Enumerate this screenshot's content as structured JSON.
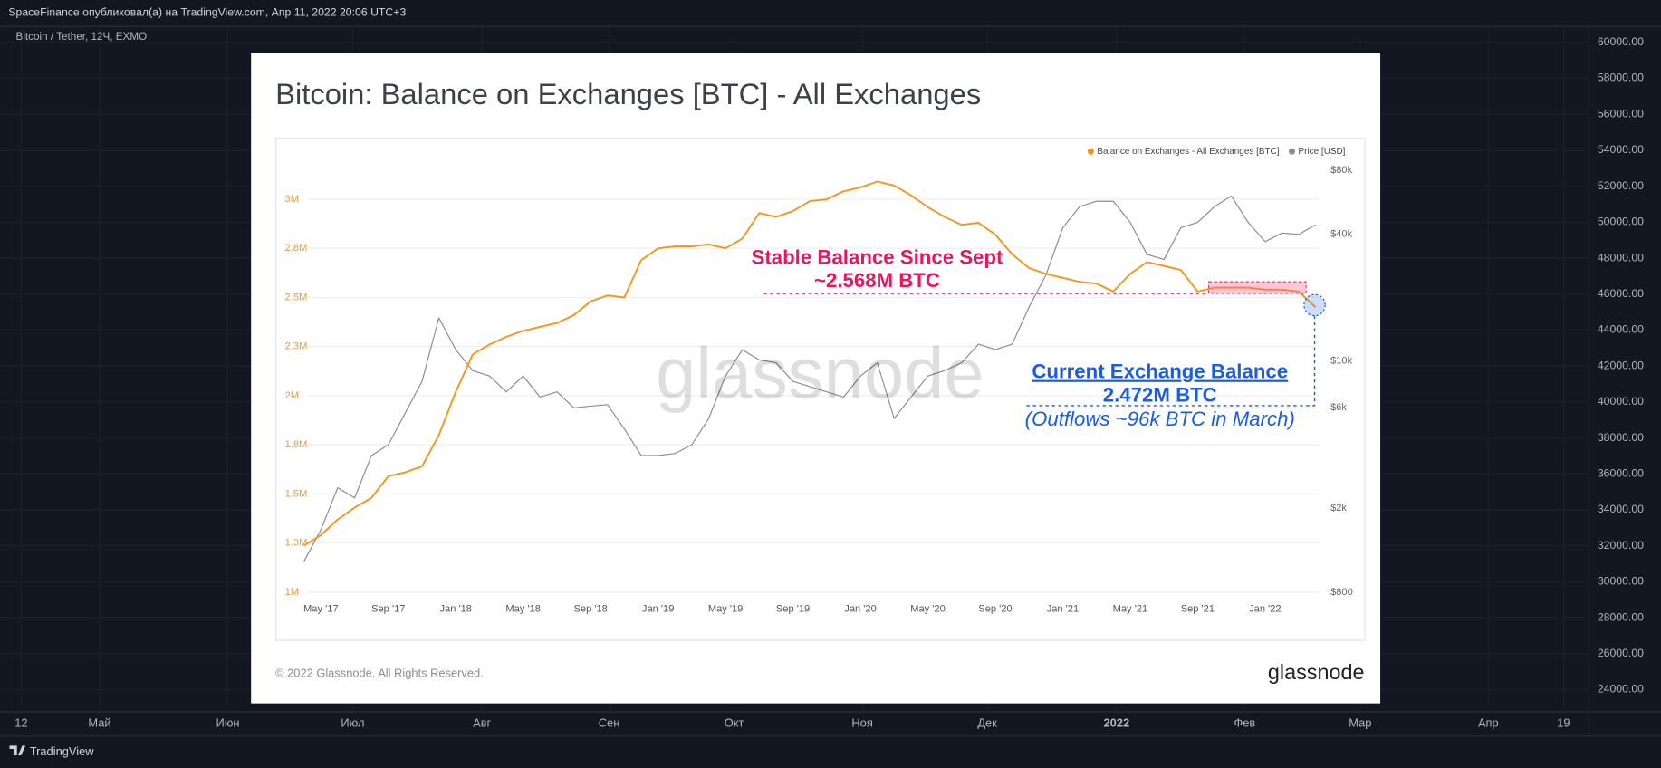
{
  "header": "SpaceFinance опубликовал(а) на TradingView.com, Апр 11, 2022 20:06 UTC+3",
  "symbol": "Bitcoin / Tether, 12Ч, EXMO",
  "price_axis": {
    "ylim": [
      24000,
      60000
    ],
    "ticks": [
      {
        "value": 60000,
        "label": "60000.00"
      },
      {
        "value": 58000,
        "label": "58000.00"
      },
      {
        "value": 56000,
        "label": "56000.00"
      },
      {
        "value": 54000,
        "label": "54000.00"
      },
      {
        "value": 52000,
        "label": "52000.00"
      },
      {
        "value": 50000,
        "label": "50000.00"
      },
      {
        "value": 48000,
        "label": "48000.00"
      },
      {
        "value": 46000,
        "label": "46000.00"
      },
      {
        "value": 44000,
        "label": "44000.00"
      },
      {
        "value": 42000,
        "label": "42000.00"
      },
      {
        "value": 40000,
        "label": "40000.00"
      },
      {
        "value": 38000,
        "label": "38000.00"
      },
      {
        "value": 36000,
        "label": "36000.00"
      },
      {
        "value": 34000,
        "label": "34000.00"
      },
      {
        "value": 32000,
        "label": "32000.00"
      },
      {
        "value": 30000,
        "label": "30000.00"
      },
      {
        "value": 28000,
        "label": "28000.00"
      },
      {
        "value": 26000,
        "label": "26000.00"
      },
      {
        "value": 24000,
        "label": "24000.00"
      }
    ]
  },
  "time_axis": [
    "12",
    "Май",
    "Июн",
    "Июл",
    "Авг",
    "Сен",
    "Окт",
    "Ноя",
    "Дек",
    "2022",
    "Фев",
    "Мар",
    "Апр",
    "19"
  ],
  "footer": "TradingView",
  "chart_data": {
    "type": "line",
    "title": "Bitcoin: Balance on Exchanges [BTC] - All Exchanges",
    "watermark": "glassnode",
    "copyright": "© 2022 Glassnode. All Rights Reserved.",
    "brand": "glassnode",
    "legend": "top-right",
    "grid": true,
    "y2log": true,
    "xlim": [
      "2017-04",
      "2022-04"
    ],
    "x": [
      "2017-04",
      "2017-05",
      "2017-06",
      "2017-07",
      "2017-08",
      "2017-09",
      "2017-10",
      "2017-11",
      "2017-12",
      "2018-01",
      "2018-02",
      "2018-03",
      "2018-04",
      "2018-05",
      "2018-06",
      "2018-07",
      "2018-08",
      "2018-09",
      "2018-10",
      "2018-11",
      "2018-12",
      "2019-01",
      "2019-02",
      "2019-03",
      "2019-04",
      "2019-05",
      "2019-06",
      "2019-07",
      "2019-08",
      "2019-09",
      "2019-10",
      "2019-11",
      "2019-12",
      "2020-01",
      "2020-02",
      "2020-03",
      "2020-04",
      "2020-05",
      "2020-06",
      "2020-07",
      "2020-08",
      "2020-09",
      "2020-10",
      "2020-11",
      "2020-12",
      "2021-01",
      "2021-02",
      "2021-03",
      "2021-04",
      "2021-05",
      "2021-06",
      "2021-07",
      "2021-08",
      "2021-09",
      "2021-10",
      "2021-11",
      "2021-12",
      "2022-01",
      "2022-02",
      "2022-03",
      "2022-04"
    ],
    "xticks": [
      {
        "value": "2017-05",
        "label": "May '17"
      },
      {
        "value": "2017-09",
        "label": "Sep '17"
      },
      {
        "value": "2018-01",
        "label": "Jan '18"
      },
      {
        "value": "2018-05",
        "label": "May '18"
      },
      {
        "value": "2018-09",
        "label": "Sep '18"
      },
      {
        "value": "2019-01",
        "label": "Jan '19"
      },
      {
        "value": "2019-05",
        "label": "May '19"
      },
      {
        "value": "2019-09",
        "label": "Sep '19"
      },
      {
        "value": "2020-01",
        "label": "Jan '20"
      },
      {
        "value": "2020-05",
        "label": "May '20"
      },
      {
        "value": "2020-09",
        "label": "Sep '20"
      },
      {
        "value": "2021-01",
        "label": "Jan '21"
      },
      {
        "value": "2021-05",
        "label": "May '21"
      },
      {
        "value": "2021-09",
        "label": "Sep '21"
      },
      {
        "value": "2022-01",
        "label": "Jan '22"
      }
    ],
    "ylim": [
      1000000,
      3250000
    ],
    "yticks": [
      {
        "value": 1000000,
        "label": "1M"
      },
      {
        "value": 1250000,
        "label": "1.3M"
      },
      {
        "value": 1500000,
        "label": "1.5M"
      },
      {
        "value": 1750000,
        "label": "1.8M"
      },
      {
        "value": 2000000,
        "label": "2M"
      },
      {
        "value": 2250000,
        "label": "2.3M"
      },
      {
        "value": 2500000,
        "label": "2.5M"
      },
      {
        "value": 2750000,
        "label": "2.8M"
      },
      {
        "value": 3000000,
        "label": "3M"
      }
    ],
    "y2lim": [
      800,
      100000
    ],
    "y2ticks": [
      {
        "value": 800,
        "label": "$800"
      },
      {
        "value": 2000,
        "label": "$2k"
      },
      {
        "value": 6000,
        "label": "$6k"
      },
      {
        "value": 10000,
        "label": "$10k"
      },
      {
        "value": 40000,
        "label": "$40k"
      },
      {
        "value": 80000,
        "label": "$80k"
      }
    ],
    "series": [
      {
        "name": "Balance on Exchanges - All Exchanges [BTC]",
        "color": "#f7931a",
        "values": [
          1237000,
          1290000,
          1370000,
          1430000,
          1480000,
          1590000,
          1610000,
          1640000,
          1800000,
          2020000,
          2210000,
          2260000,
          2300000,
          2330000,
          2350000,
          2370000,
          2410000,
          2480000,
          2510000,
          2500000,
          2690000,
          2750000,
          2760000,
          2760000,
          2770000,
          2750000,
          2800000,
          2930000,
          2910000,
          2940000,
          2990000,
          3000000,
          3040000,
          3060000,
          3090000,
          3070000,
          3020000,
          2960000,
          2910000,
          2870000,
          2880000,
          2820000,
          2720000,
          2650000,
          2620000,
          2600000,
          2580000,
          2570000,
          2530000,
          2620000,
          2680000,
          2660000,
          2640000,
          2530000,
          2550000,
          2550000,
          2550000,
          2540000,
          2540000,
          2530000,
          2450000
        ]
      },
      {
        "name": "Price [USD]",
        "color": "#8c8c8c",
        "axis": "y2",
        "values": [
          1120,
          1580,
          2500,
          2240,
          3560,
          4000,
          5650,
          8000,
          16000,
          11300,
          9000,
          8480,
          7130,
          8480,
          6730,
          7130,
          5990,
          6100,
          6200,
          4750,
          3560,
          3560,
          3640,
          4000,
          5330,
          8480,
          11300,
          10100,
          9800,
          8000,
          7550,
          7130,
          6730,
          8480,
          9800,
          5330,
          6730,
          8480,
          9000,
          9800,
          12000,
          11300,
          12000,
          18000,
          25500,
          42800,
          54000,
          57200,
          57200,
          45400,
          32000,
          30300,
          42800,
          45400,
          54000,
          60600,
          45400,
          36800,
          40400,
          39800,
          44300
        ]
      }
    ],
    "annotations": [
      "Stable Balance Since Sept",
      "~2.568M BTC",
      "Current Exchange Balance",
      "2.472M BTC",
      "(Outflows ~96k BTC in March)"
    ]
  }
}
